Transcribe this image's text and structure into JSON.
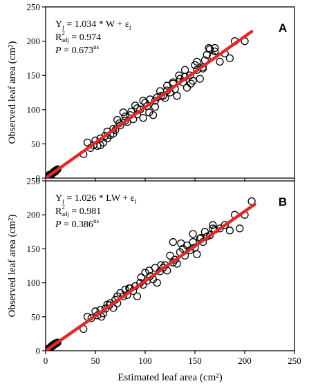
{
  "chart_data": [
    {
      "type": "scatter",
      "panel": "A",
      "ylabel": "Observed leaf area (cm²)",
      "xlabel": "",
      "xlim": [
        0,
        250
      ],
      "ylim": [
        0,
        250
      ],
      "xticks": [
        "0",
        "50",
        "100",
        "150",
        "200",
        "250"
      ],
      "yticks": [
        "0",
        "50",
        "100",
        "150",
        "200",
        "250"
      ],
      "show_x_tick_labels": false,
      "grid": false,
      "annotations": {
        "line1": {
          "y": "Y",
          "i": "i",
          "rest": " = 1.034 * W + ε",
          "eps_sub": "i"
        },
        "line2": {
          "r": "R",
          "sup": "2",
          "sub": "adj",
          "rest": " = 0.974"
        },
        "line3": {
          "p": "P",
          "rest": " = 0.673",
          "sup": "ns"
        }
      },
      "fit_line": {
        "slope": 1.034,
        "x_range": [
          2,
          207
        ],
        "color": "#e02b2b"
      },
      "series": [
        {
          "marker": "open-circle",
          "x": [
            2,
            3,
            4,
            5,
            6,
            7,
            8,
            9,
            10,
            11,
            4,
            6,
            8,
            10,
            12,
            38,
            42,
            45,
            48,
            50,
            52,
            55,
            58,
            60,
            62,
            65,
            68,
            70,
            72,
            75,
            78,
            80,
            82,
            85,
            88,
            90,
            92,
            95,
            98,
            100,
            102,
            105,
            108,
            110,
            112,
            115,
            118,
            120,
            122,
            125,
            128,
            130,
            132,
            135,
            138,
            140,
            142,
            145,
            148,
            150,
            152,
            155,
            158,
            160,
            162,
            165,
            168,
            170,
            175,
            180,
            185,
            190,
            200,
            55,
            62,
            68,
            74,
            80,
            86,
            92,
            98,
            104,
            110,
            116,
            122,
            128,
            134,
            140,
            146,
            152,
            158,
            164,
            170
          ],
          "y": [
            2,
            3,
            5,
            5,
            6,
            7,
            9,
            9,
            10,
            12,
            3,
            5,
            8,
            11,
            13,
            35,
            52,
            44,
            48,
            55,
            47,
            58,
            52,
            62,
            68,
            63,
            72,
            70,
            85,
            77,
            96,
            84,
            82,
            92,
            86,
            106,
            93,
            100,
            88,
            110,
            105,
            115,
            92,
            113,
            118,
            127,
            120,
            117,
            135,
            125,
            138,
            130,
            120,
            145,
            140,
            148,
            132,
            150,
            142,
            165,
            158,
            145,
            160,
            172,
            180,
            188,
            178,
            190,
            170,
            182,
            175,
            200,
            200,
            48,
            58,
            65,
            80,
            90,
            97,
            102,
            113,
            96,
            104,
            120,
            128,
            140,
            150,
            158,
            138,
            170,
            162,
            190,
            185
          ]
        }
      ]
    },
    {
      "type": "scatter",
      "panel": "B",
      "ylabel": "Observed leaf area (cm²)",
      "xlabel": "Estimated leaf area (cm²)",
      "xlim": [
        0,
        250
      ],
      "ylim": [
        0,
        250
      ],
      "xticks": [
        "0",
        "50",
        "100",
        "150",
        "200",
        "250"
      ],
      "yticks": [
        "0",
        "50",
        "100",
        "150",
        "200",
        "250"
      ],
      "show_x_tick_labels": true,
      "grid": false,
      "annotations": {
        "line1": {
          "y": "Y",
          "i": "i",
          "rest": " = 1.026 * LW + ε",
          "eps_sub": "i"
        },
        "line2": {
          "r": "R",
          "sup": "2",
          "sub": "adj",
          "rest": " = 0.981"
        },
        "line3": {
          "p": "P",
          "rest": " = 0.386",
          "sup": "ns"
        }
      },
      "fit_line": {
        "slope": 1.026,
        "x_range": [
          2,
          210
        ],
        "color": "#e02b2b"
      },
      "series": [
        {
          "marker": "open-circle",
          "x": [
            2,
            3,
            4,
            5,
            6,
            7,
            8,
            9,
            10,
            11,
            12,
            5,
            8,
            10,
            38,
            42,
            46,
            50,
            52,
            55,
            58,
            60,
            62,
            65,
            68,
            70,
            72,
            75,
            78,
            80,
            82,
            85,
            88,
            90,
            92,
            95,
            98,
            100,
            102,
            105,
            108,
            110,
            112,
            115,
            118,
            120,
            122,
            125,
            128,
            130,
            132,
            135,
            138,
            140,
            142,
            145,
            148,
            150,
            152,
            155,
            158,
            160,
            162,
            165,
            168,
            170,
            175,
            180,
            185,
            190,
            195,
            200,
            207,
            56,
            64,
            72,
            84,
            96,
            104,
            116,
            128,
            136,
            148,
            156,
            168
          ],
          "y": [
            2,
            3,
            4,
            5,
            7,
            7,
            8,
            10,
            10,
            11,
            12,
            4,
            9,
            11,
            32,
            50,
            48,
            58,
            52,
            60,
            55,
            62,
            68,
            70,
            63,
            75,
            70,
            85,
            80,
            90,
            82,
            92,
            88,
            95,
            80,
            100,
            97,
            115,
            103,
            110,
            105,
            122,
            100,
            117,
            122,
            126,
            118,
            140,
            130,
            134,
            128,
            145,
            150,
            140,
            155,
            148,
            160,
            152,
            142,
            165,
            160,
            175,
            168,
            170,
            180,
            178,
            180,
            185,
            177,
            200,
            180,
            200,
            220,
            50,
            67,
            80,
            92,
            108,
            118,
            126,
            160,
            158,
            172,
            166,
            185
          ]
        }
      ]
    }
  ]
}
